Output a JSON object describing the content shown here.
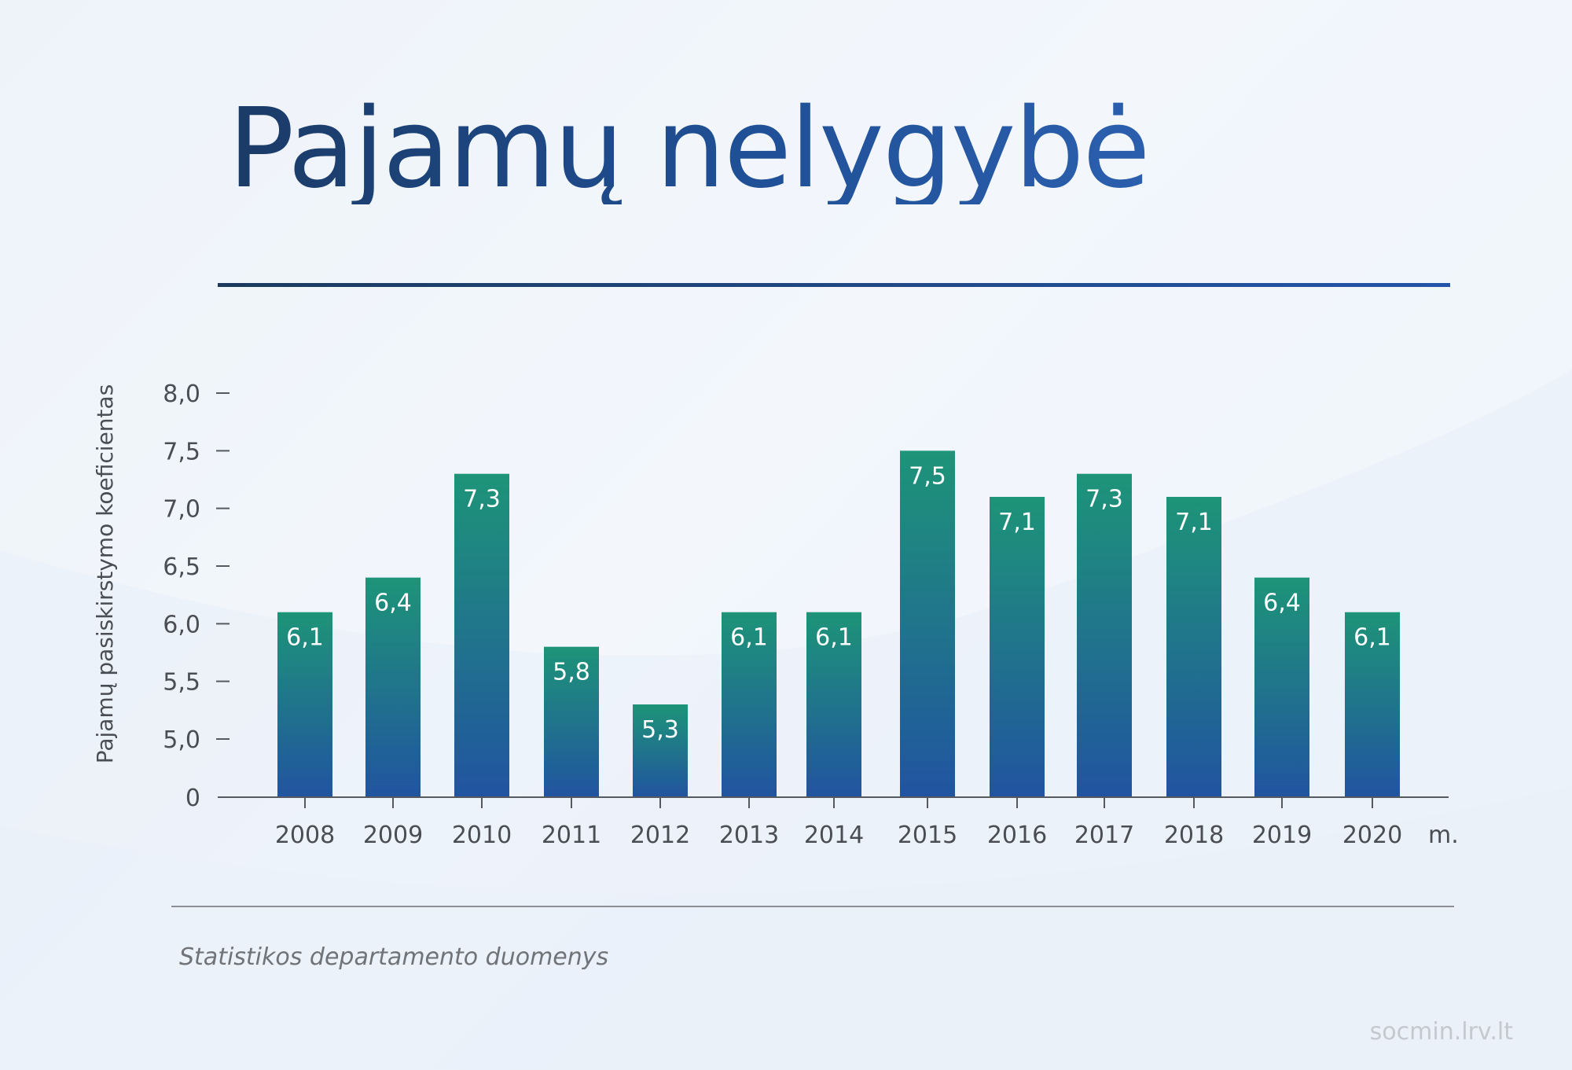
{
  "title": "Pajamų nelygybė",
  "source": "Statistikos departamento duomenys",
  "watermark": "socmin.lrv.lt",
  "colors": {
    "bar_top": "#1e9478",
    "bar_bottom": "#2154a0",
    "axis": "#555a60",
    "text": "#4a4e54"
  },
  "chart_data": {
    "type": "bar",
    "title": "Pajamų nelygybė",
    "ylabel": "Pajamų pasiskirstymo koeficientas",
    "x_unit": "m.",
    "categories": [
      "2008",
      "2009",
      "2010",
      "2011",
      "2012",
      "2013",
      "2014",
      "2015",
      "2016",
      "2017",
      "2018",
      "2019",
      "2020"
    ],
    "values": [
      6.1,
      6.4,
      7.3,
      5.8,
      5.3,
      6.1,
      6.1,
      7.5,
      7.1,
      7.3,
      7.1,
      6.4,
      6.1
    ],
    "value_labels": [
      "6,1",
      "6,4",
      "7,3",
      "5,8",
      "5,3",
      "6,1",
      "6,1",
      "7,5",
      "7,1",
      "7,3",
      "7,1",
      "6,4",
      "6,1"
    ],
    "y_ticks": [
      {
        "value": 0,
        "label": "0"
      },
      {
        "value": 5.0,
        "label": "5,0"
      },
      {
        "value": 5.5,
        "label": "5,5"
      },
      {
        "value": 6.0,
        "label": "6,0"
      },
      {
        "value": 6.5,
        "label": "6,5"
      },
      {
        "value": 7.0,
        "label": "7,0"
      },
      {
        "value": 7.5,
        "label": "7,5"
      },
      {
        "value": 8.0,
        "label": "8,0"
      }
    ],
    "ylim": [
      0,
      8.0
    ],
    "axis_break": "between 0 and 5,0",
    "grid": false,
    "legend": "none"
  }
}
